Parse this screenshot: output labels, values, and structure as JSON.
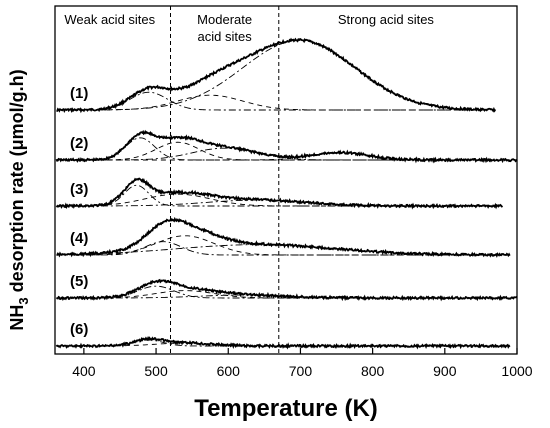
{
  "chart_data": {
    "type": "line",
    "xlabel": "Temperature (K)",
    "ylabel_main": "NH",
    "ylabel_sub": "3",
    "ylabel_rest": " desorption rate (μmol/g.h)",
    "xlim": [
      360,
      1000
    ],
    "x_ticks": [
      400,
      500,
      600,
      700,
      800,
      900,
      1000
    ],
    "regions": [
      {
        "label_lines": [
          "Weak acid sites"
        ]
      },
      {
        "label_lines": [
          "Moderate",
          "acid sites"
        ]
      },
      {
        "label_lines": [
          "Strong acid sites"
        ]
      }
    ],
    "region_boundaries": [
      520,
      670
    ],
    "series": [
      {
        "name": "(1)",
        "x_end": 970,
        "fit_peaks": [
          {
            "center": 490,
            "height": 0.12,
            "width": 26
          },
          {
            "center": 575,
            "height": 0.1,
            "width": 45
          },
          {
            "center": 698,
            "height": 0.47,
            "width": 78
          }
        ]
      },
      {
        "name": "(2)",
        "x_end": 1000,
        "fit_peaks": [
          {
            "center": 478,
            "height": 0.15,
            "width": 20
          },
          {
            "center": 530,
            "height": 0.12,
            "width": 30
          },
          {
            "center": 595,
            "height": 0.08,
            "width": 45
          },
          {
            "center": 755,
            "height": 0.05,
            "width": 40
          }
        ]
      },
      {
        "name": "(3)",
        "x_end": 980,
        "fit_peaks": [
          {
            "center": 473,
            "height": 0.14,
            "width": 17
          },
          {
            "center": 530,
            "height": 0.08,
            "width": 45
          },
          {
            "center": 640,
            "height": 0.04,
            "width": 70
          }
        ]
      },
      {
        "name": "(4)",
        "x_end": 990,
        "fit_peaks": [
          {
            "center": 510,
            "height": 0.09,
            "width": 25
          },
          {
            "center": 540,
            "height": 0.13,
            "width": 40
          },
          {
            "center": 640,
            "height": 0.07,
            "width": 110
          }
        ]
      },
      {
        "name": "(5)",
        "x_end": 1000,
        "fit_peaks": [
          {
            "center": 500,
            "height": 0.08,
            "width": 25
          },
          {
            "center": 540,
            "height": 0.05,
            "width": 40
          },
          {
            "center": 620,
            "height": 0.02,
            "width": 60
          }
        ]
      },
      {
        "name": "(6)",
        "x_end": 990,
        "fit_peaks": [
          {
            "center": 490,
            "height": 0.04,
            "width": 20
          },
          {
            "center": 540,
            "height": 0.02,
            "width": 40
          }
        ]
      }
    ]
  }
}
